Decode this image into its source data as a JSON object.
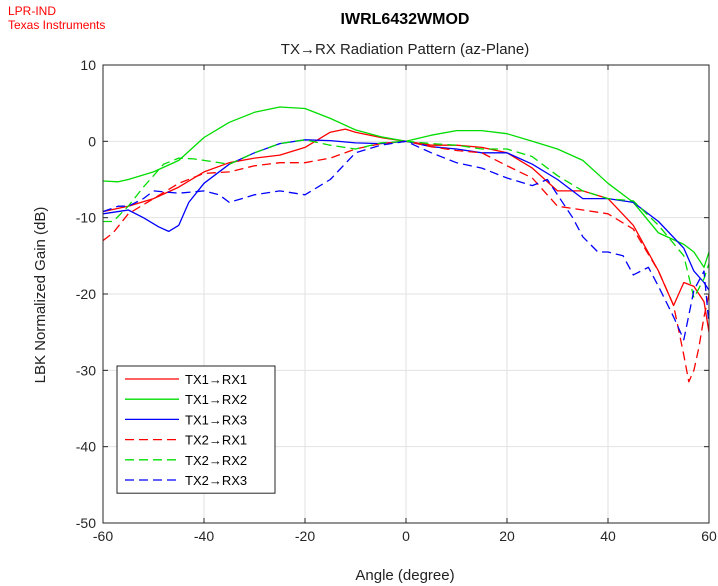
{
  "corner_text": [
    "LPR-IND",
    "Texas Instruments"
  ],
  "chart_data": {
    "type": "line",
    "title": "IWRL6432WMOD",
    "subtitle": "TX→RX Radiation Pattern (az-Plane)",
    "xlabel": "Angle (degree)",
    "ylabel": "LBK Normalized Gain (dB)",
    "xlim": [
      -60,
      60
    ],
    "ylim": [
      -50,
      10
    ],
    "xticks": [
      -60,
      -40,
      -20,
      0,
      20,
      40,
      60
    ],
    "yticks": [
      -50,
      -40,
      -30,
      -20,
      -10,
      0,
      10
    ],
    "grid": true,
    "legend_position": "bottom-left",
    "series": [
      {
        "name": "TX1→RX1",
        "color": "#ff0000",
        "dash": "solid",
        "x": [
          -60,
          -55,
          -50,
          -45,
          -40,
          -35,
          -30,
          -25,
          -20,
          -15,
          -12,
          -10,
          -5,
          0,
          5,
          10,
          15,
          20,
          25,
          30,
          35,
          40,
          45,
          50,
          53,
          55,
          57,
          59,
          60
        ],
        "y": [
          -9.2,
          -8.5,
          -7.5,
          -6.0,
          -4.0,
          -2.8,
          -2.2,
          -1.8,
          -0.8,
          1.2,
          1.6,
          1.2,
          0.5,
          0,
          -0.5,
          -0.5,
          -0.8,
          -1.5,
          -3.5,
          -6.5,
          -6.5,
          -7.5,
          -11,
          -17,
          -21.5,
          -18.5,
          -19,
          -21,
          -25
        ]
      },
      {
        "name": "TX1→RX2",
        "color": "#00dd00",
        "dash": "solid",
        "x": [
          -60,
          -57,
          -55,
          -50,
          -45,
          -40,
          -35,
          -30,
          -25,
          -20,
          -15,
          -10,
          -5,
          0,
          5,
          10,
          15,
          20,
          25,
          30,
          35,
          40,
          45,
          50,
          55,
          57,
          59,
          60
        ],
        "y": [
          -5.2,
          -5.3,
          -5.0,
          -4.0,
          -2.5,
          0.5,
          2.5,
          3.8,
          4.5,
          4.3,
          3.0,
          1.5,
          0.6,
          0,
          0.8,
          1.4,
          1.4,
          1.0,
          0,
          -1.0,
          -2.5,
          -5.5,
          -8,
          -12,
          -13.5,
          -14.5,
          -16.5,
          -14.5
        ]
      },
      {
        "name": "TX1→RX3",
        "color": "#0000ff",
        "dash": "solid",
        "x": [
          -60,
          -55,
          -52,
          -49,
          -47,
          -45,
          -43,
          -40,
          -35,
          -30,
          -25,
          -20,
          -15,
          -10,
          -5,
          0,
          5,
          10,
          15,
          20,
          25,
          30,
          35,
          40,
          45,
          50,
          55,
          57,
          59,
          60
        ],
        "y": [
          -9.5,
          -9.0,
          -10,
          -11.2,
          -11.8,
          -11.0,
          -8.0,
          -5.5,
          -3.0,
          -1.5,
          -0.3,
          0.2,
          0.1,
          -0.2,
          -0.3,
          0,
          -0.7,
          -1.0,
          -1.5,
          -1.5,
          -3.0,
          -5.0,
          -7.5,
          -7.5,
          -8.0,
          -10.5,
          -14,
          -17,
          -18.5,
          -19.5
        ]
      },
      {
        "name": "TX2→RX1",
        "color": "#ff0000",
        "dash": "dashed",
        "x": [
          -60,
          -58,
          -55,
          -50,
          -45,
          -40,
          -35,
          -30,
          -25,
          -20,
          -15,
          -10,
          -5,
          0,
          5,
          10,
          15,
          20,
          25,
          30,
          35,
          40,
          45,
          50,
          53,
          55,
          56,
          57,
          58,
          59,
          60
        ],
        "y": [
          -13,
          -12,
          -9.5,
          -7.5,
          -5.5,
          -4.2,
          -4.0,
          -3.2,
          -2.8,
          -2.8,
          -2.2,
          -1.0,
          -0.3,
          0,
          -0.7,
          -1.2,
          -1.5,
          -3.2,
          -4.8,
          -8.5,
          -9.0,
          -9.5,
          -11.5,
          -17,
          -21.5,
          -28,
          -31.5,
          -30,
          -27,
          -23,
          -20
        ]
      },
      {
        "name": "TX2→RX2",
        "color": "#00dd00",
        "dash": "dashed",
        "x": [
          -60,
          -58,
          -55,
          -52,
          -50,
          -48,
          -45,
          -42,
          -40,
          -35,
          -30,
          -25,
          -20,
          -15,
          -10,
          -5,
          0,
          5,
          10,
          15,
          20,
          25,
          30,
          35,
          40,
          45,
          50,
          55,
          57,
          59,
          60
        ],
        "y": [
          -10.5,
          -10.5,
          -8.5,
          -6.0,
          -4.5,
          -3.0,
          -2.2,
          -2.3,
          -2.5,
          -3.0,
          -1.5,
          -0.3,
          0.2,
          -0.5,
          -1.0,
          -0.2,
          0,
          -0.3,
          -0.5,
          -1.0,
          -1.0,
          -2.0,
          -4.5,
          -6.5,
          -7.5,
          -7.8,
          -11,
          -15,
          -20.5,
          -18,
          -16
        ]
      },
      {
        "name": "TX2→RX3",
        "color": "#0000ff",
        "dash": "dashed",
        "x": [
          -60,
          -57,
          -55,
          -52,
          -50,
          -45,
          -40,
          -37,
          -35,
          -30,
          -25,
          -20,
          -15,
          -10,
          -5,
          0,
          5,
          10,
          15,
          20,
          25,
          28,
          30,
          33,
          35,
          38,
          40,
          43,
          45,
          48,
          50,
          53,
          55,
          57,
          59,
          60
        ],
        "y": [
          -9.2,
          -8.5,
          -8.5,
          -7.5,
          -6.5,
          -6.8,
          -6.5,
          -7.0,
          -8.0,
          -7.0,
          -6.5,
          -7.0,
          -5.0,
          -1.5,
          -0.5,
          0,
          -1.5,
          -2.8,
          -3.5,
          -4.8,
          -5.8,
          -5.0,
          -7.0,
          -10,
          -12.5,
          -14.5,
          -14.5,
          -15,
          -17.5,
          -16.5,
          -19,
          -23,
          -26,
          -19.5,
          -17,
          -24
        ]
      }
    ]
  }
}
